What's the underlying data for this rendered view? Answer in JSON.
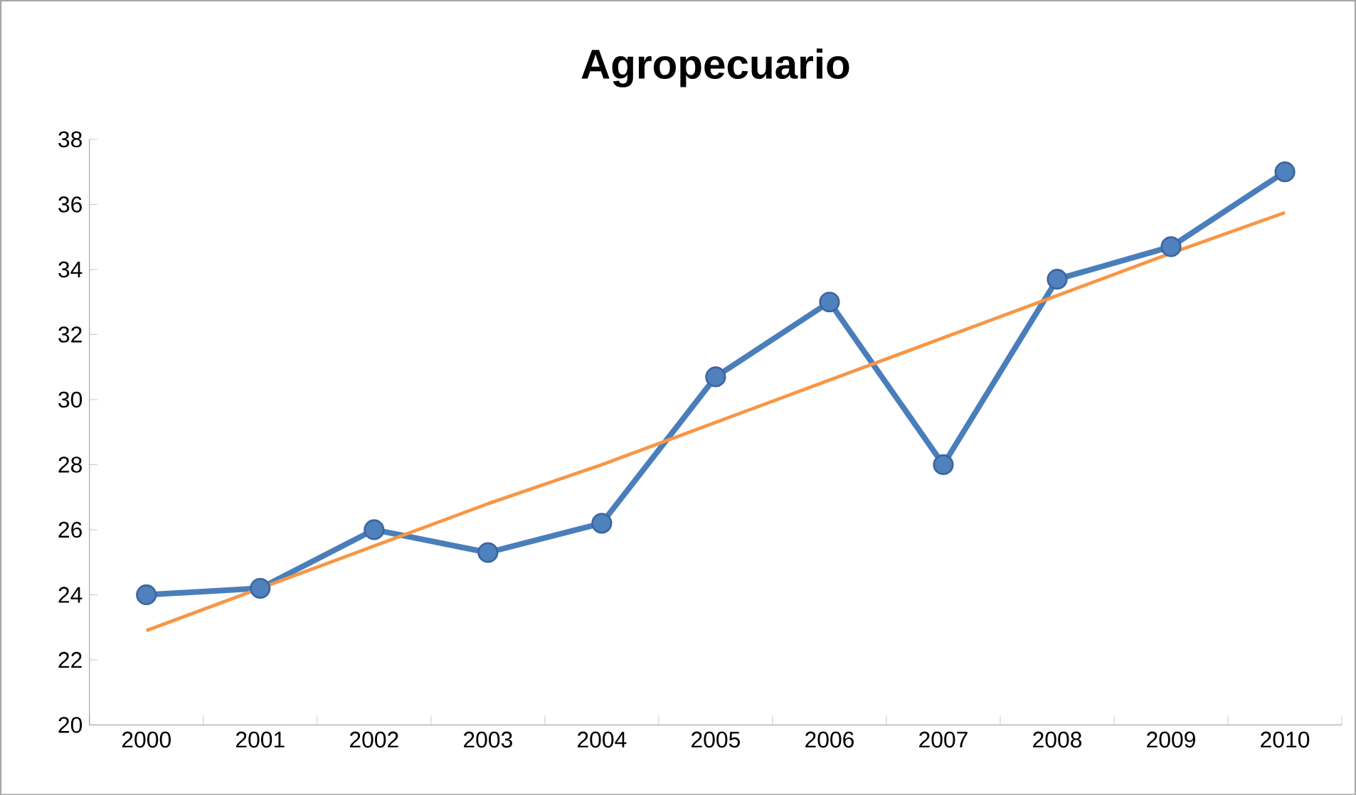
{
  "chart_data": {
    "type": "line",
    "title": "Agropecuario",
    "categories": [
      "2000",
      "2001",
      "2002",
      "2003",
      "2004",
      "2005",
      "2006",
      "2007",
      "2008",
      "2009",
      "2010"
    ],
    "series": [
      {
        "color": "#4a7ebb",
        "marker": "circle",
        "values": [
          24.0,
          24.2,
          26.0,
          25.3,
          26.2,
          30.7,
          33.0,
          28.0,
          33.7,
          34.7,
          37.0
        ]
      },
      {
        "type": "line",
        "color": "#f79646",
        "marker": "none",
        "values": [
          22.9,
          24.2,
          25.5,
          26.8,
          28.0,
          29.3,
          30.6,
          31.9,
          33.2,
          34.5,
          35.75
        ]
      }
    ],
    "ylim": [
      20,
      38
    ],
    "yticks": [
      20,
      22,
      24,
      26,
      28,
      30,
      32,
      34,
      36,
      38
    ],
    "grid": false
  }
}
